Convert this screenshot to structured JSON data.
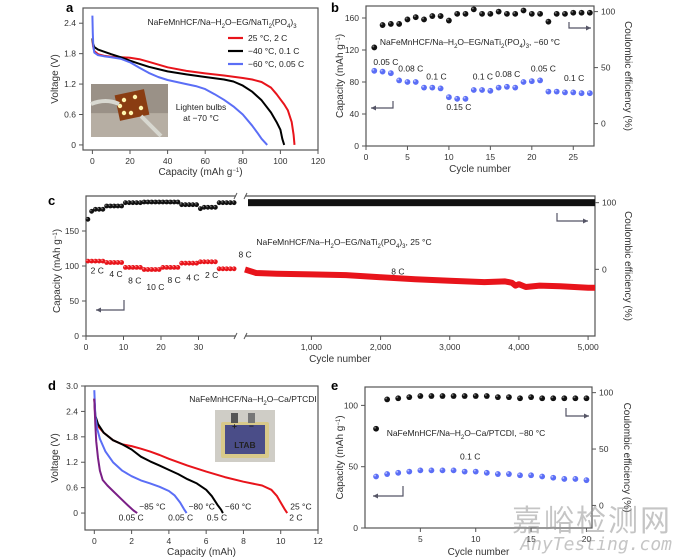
{
  "figure": {
    "panel_labels": [
      "a",
      "b",
      "c",
      "d",
      "e"
    ],
    "watermark": {
      "cn": "嘉峪检测网",
      "en": "AnyTesting.com"
    }
  },
  "chart_data": [
    {
      "id": "a",
      "type": "line",
      "title": "NaFeMnHCF/Na-H2O-EG/NaTi2(PO4)3",
      "xlabel": "Capacity (mAh g⁻¹)",
      "ylabel": "Voltage (V)",
      "xlim": [
        -5,
        120
      ],
      "ylim": [
        -0.1,
        2.7
      ],
      "xticks": [
        0,
        20,
        40,
        60,
        80,
        100,
        120
      ],
      "yticks": [
        0,
        0.6,
        1.2,
        1.8,
        2.4
      ],
      "ytick_labels": [
        "0",
        "0.6",
        "1.2",
        "1.8",
        "2.4"
      ],
      "legend_position": "top-right",
      "inset": {
        "caption_line1": "Lighten bulbs",
        "caption_line2": "at −70 °C"
      },
      "series": [
        {
          "name": "25 °C, 2 C",
          "color": "#e8141b",
          "x": [
            0,
            0.3,
            1,
            3,
            6,
            10,
            15,
            20,
            25,
            30,
            40,
            50,
            60,
            70,
            80,
            85,
            90,
            95,
            98,
            100,
            102,
            104,
            106,
            107,
            107.5
          ],
          "y": [
            2.1,
            1.95,
            1.85,
            1.79,
            1.76,
            1.74,
            1.73,
            1.72,
            1.69,
            1.64,
            1.53,
            1.46,
            1.41,
            1.37,
            1.32,
            1.29,
            1.24,
            1.13,
            1.0,
            0.9,
            0.8,
            0.68,
            0.45,
            0.2,
            0.0
          ]
        },
        {
          "name": "−40 °C, 0.1 C",
          "color": "#000000",
          "x": [
            0,
            0.3,
            1,
            3,
            6,
            10,
            15,
            20,
            25,
            30,
            40,
            50,
            60,
            70,
            75,
            80,
            85,
            90,
            95,
            98,
            100,
            101,
            102
          ],
          "y": [
            2.1,
            2.0,
            1.93,
            1.88,
            1.84,
            1.79,
            1.73,
            1.66,
            1.6,
            1.54,
            1.45,
            1.39,
            1.34,
            1.29,
            1.25,
            1.17,
            1.05,
            0.88,
            0.64,
            0.45,
            0.3,
            0.12,
            0.0
          ]
        },
        {
          "name": "−60 °C, 0.05 C",
          "color": "#5b6ef6",
          "x": [
            0,
            0.2,
            0.5,
            1,
            3,
            6,
            10,
            15,
            20,
            25,
            30,
            35,
            40,
            50,
            55,
            60,
            65,
            70,
            75,
            80,
            85,
            88,
            90,
            92,
            93
          ],
          "y": [
            2.55,
            2.2,
            1.95,
            1.82,
            1.77,
            1.75,
            1.73,
            1.7,
            1.63,
            1.52,
            1.42,
            1.34,
            1.28,
            1.2,
            1.16,
            1.1,
            1.0,
            0.89,
            0.76,
            0.6,
            0.38,
            0.23,
            0.12,
            0.04,
            0.0
          ]
        }
      ]
    },
    {
      "id": "b",
      "type": "scatter",
      "title": "NaFeMnHCF/Na-H2O-EG/NaTi2(PO4)3, −60 °C",
      "xlabel": "Cycle number",
      "ylabel": "Capacity (mAh g⁻¹)",
      "y2label": "Coulombic efficiency (%)",
      "xlim": [
        0,
        27.5
      ],
      "ylim": [
        0,
        175
      ],
      "y2lim": [
        -20,
        105
      ],
      "xticks": [
        0,
        5,
        10,
        15,
        20,
        25
      ],
      "yticks": [
        0,
        40,
        80,
        120,
        160
      ],
      "y2ticks": [
        0,
        50,
        100
      ],
      "series": [
        {
          "name": "Capacity",
          "axis": "left",
          "color": "#5b6ef6",
          "x": [
            1,
            2,
            3,
            4,
            5,
            6,
            7,
            8,
            9,
            10,
            11,
            12,
            13,
            14,
            15,
            16,
            17,
            18,
            19,
            20,
            21,
            22,
            23,
            24,
            25,
            26,
            27
          ],
          "y": [
            94,
            93,
            91,
            82,
            80,
            80,
            73,
            73,
            72,
            61,
            59,
            59,
            70,
            70,
            69,
            73,
            74,
            73,
            80,
            81,
            82,
            68,
            68,
            67,
            67,
            66,
            66
          ]
        },
        {
          "name": "Coulombic efficiency",
          "axis": "right",
          "color": "#111111",
          "x": [
            1,
            2,
            3,
            4,
            5,
            6,
            7,
            8,
            9,
            10,
            11,
            12,
            13,
            14,
            15,
            16,
            17,
            18,
            19,
            20,
            21,
            22,
            23,
            24,
            25,
            26,
            27
          ],
          "y": [
            68,
            88,
            89,
            89,
            93,
            95,
            93,
            96,
            96,
            92,
            98,
            98,
            102,
            98,
            98,
            100,
            98,
            98,
            101,
            98,
            98,
            91,
            98,
            98,
            99,
            99,
            99
          ]
        }
      ],
      "annotations": [
        {
          "text": "0.05 C",
          "x": 2.4,
          "y": 101
        },
        {
          "text": "0.08 C",
          "x": 5.4,
          "y": 93
        },
        {
          "text": "0.1 C",
          "x": 8.5,
          "y": 83
        },
        {
          "text": "0.15 C",
          "x": 11.2,
          "y": 45
        },
        {
          "text": "0.1 C",
          "x": 14.1,
          "y": 83
        },
        {
          "text": "0.08 C",
          "x": 17.1,
          "y": 86
        },
        {
          "text": "0.05 C",
          "x": 21.4,
          "y": 93
        },
        {
          "text": "0.1 C",
          "x": 25.1,
          "y": 81
        }
      ]
    },
    {
      "id": "c",
      "type": "scatter",
      "title": "NaFeMnHCF/Na-H2O-EG/NaTi2(PO4)3, 25 °C",
      "xlabel": "Cycle number",
      "ylabel": "Capacity (mAh g⁻¹)",
      "y2label": "Coulombic efficiency (%)",
      "broken_x_axis": true,
      "xlim_left": [
        0,
        40
      ],
      "xlim_right": [
        40,
        5100
      ],
      "ylim": [
        0,
        200
      ],
      "y2lim": [
        -100,
        110
      ],
      "xticks_left": [
        0,
        10,
        20,
        30
      ],
      "xticks_right": [
        1000,
        2000,
        3000,
        4000,
        5000
      ],
      "xtick_labels_right": [
        "1,000",
        "2,000",
        "3,000",
        "4,000",
        "5,000"
      ],
      "yticks": [
        0,
        50,
        100,
        150
      ],
      "y2ticks": [
        0,
        100
      ],
      "rate_segments": [
        {
          "label": "2 C",
          "cycles": [
            1,
            5
          ],
          "capacity": 107,
          "ce": [
            75,
            87,
            90
          ]
        },
        {
          "label": "4 C",
          "cycles": [
            6,
            10
          ],
          "capacity": 105,
          "ce": [
            95
          ]
        },
        {
          "label": "8 C",
          "cycles": [
            11,
            15
          ],
          "capacity": 98,
          "ce": [
            100
          ]
        },
        {
          "label": "10 C",
          "cycles": [
            16,
            20
          ],
          "capacity": 95,
          "ce": [
            101
          ]
        },
        {
          "label": "8 C",
          "cycles": [
            21,
            25
          ],
          "capacity": 98,
          "ce": [
            101
          ]
        },
        {
          "label": "4 C",
          "cycles": [
            26,
            30
          ],
          "capacity": 104,
          "ce": [
            97
          ]
        },
        {
          "label": "2 C",
          "cycles": [
            31,
            35
          ],
          "capacity": 106,
          "ce": [
            91,
            93
          ]
        },
        {
          "label": "8 C",
          "cycles": [
            36,
            40
          ],
          "capacity": 96,
          "ce": [
            100
          ]
        }
      ],
      "long_cycle": {
        "label": "8 C",
        "capacity_x": [
          40,
          200,
          500,
          1000,
          1500,
          2000,
          2500,
          3000,
          3500,
          3800,
          3900,
          3950,
          4000,
          4100,
          4300,
          4600,
          5000,
          5100
        ],
        "capacity_y": [
          95,
          90,
          89,
          88,
          87,
          84,
          81,
          79,
          77,
          78,
          76,
          72,
          74,
          70,
          72,
          71,
          69,
          69
        ],
        "ce": 100
      },
      "annotations": [
        {
          "text": "2 C",
          "x": 3,
          "y": 89
        },
        {
          "text": "4 C",
          "x": 8,
          "y": 84
        },
        {
          "text": "8 C",
          "x": 13,
          "y": 75
        },
        {
          "text": "10 C",
          "x": 18.5,
          "y": 66
        },
        {
          "text": "8 C",
          "x": 23.5,
          "y": 76
        },
        {
          "text": "4 C",
          "x": 28.5,
          "y": 79
        },
        {
          "text": "2 C",
          "x": 33.5,
          "y": 83
        },
        {
          "text": "8 C",
          "x": 41,
          "y": 112
        },
        {
          "text": "8 C",
          "x": 2250,
          "y": 88
        }
      ]
    },
    {
      "id": "d",
      "type": "line",
      "title": "NaFeMnHCF/Na-H2O-Ca/PTCDI",
      "xlabel": "Capacity (mAh)",
      "ylabel": "Voltage (V)",
      "xlim": [
        -0.5,
        12
      ],
      "ylim": [
        -0.4,
        3.0
      ],
      "xticks": [
        0,
        2,
        4,
        6,
        8,
        10,
        12
      ],
      "yticks": [
        0,
        0.6,
        1.2,
        1.8,
        2.4,
        3.0
      ],
      "ytick_labels": [
        "0",
        "0.6",
        "1.2",
        "1.8",
        "2.4",
        "3.0"
      ],
      "inset": {
        "label": "LTAB",
        "plus": "+",
        "minus": "−"
      },
      "series": [
        {
          "name": "25 °C",
          "rate": "2 C",
          "color": "#e8141b",
          "x": [
            0,
            0.05,
            0.2,
            0.5,
            1,
            1.5,
            2,
            2.5,
            3,
            3.5,
            4,
            5,
            6,
            7,
            8,
            9,
            9.5,
            9.8,
            10,
            10.2,
            10.35
          ],
          "y": [
            2.7,
            2.25,
            2.05,
            1.9,
            1.72,
            1.62,
            1.58,
            1.52,
            1.45,
            1.37,
            1.28,
            1.12,
            0.98,
            0.85,
            0.74,
            0.65,
            0.55,
            0.4,
            0.25,
            0.1,
            0.0
          ]
        },
        {
          "name": "−60 °C",
          "rate": "0.5 C",
          "color": "#000000",
          "x": [
            0,
            0.05,
            0.2,
            0.5,
            1,
            1.5,
            2,
            2.5,
            3,
            3.5,
            4,
            4.5,
            5,
            5.5,
            6,
            6.3,
            6.6,
            6.8,
            6.9
          ],
          "y": [
            2.7,
            2.3,
            2.1,
            1.9,
            1.72,
            1.62,
            1.5,
            1.33,
            1.22,
            1.12,
            1.02,
            0.92,
            0.8,
            0.7,
            0.55,
            0.4,
            0.2,
            0.08,
            0.0
          ]
        },
        {
          "name": "−80 °C",
          "rate": "0.05 C",
          "color": "#5b6ef6",
          "x": [
            0,
            0.05,
            0.15,
            0.3,
            0.6,
            1,
            1.5,
            2,
            2.5,
            3,
            3.5,
            4,
            4.3,
            4.6,
            4.8,
            4.95
          ],
          "y": [
            2.9,
            2.3,
            2.0,
            1.75,
            1.45,
            1.2,
            1.0,
            0.87,
            0.77,
            0.7,
            0.62,
            0.52,
            0.42,
            0.25,
            0.1,
            0.0
          ]
        },
        {
          "name": "−85 °C",
          "rate": "0.05 C",
          "color": "#7a1f86",
          "x": [
            0,
            0.05,
            0.1,
            0.2,
            0.3,
            0.45,
            0.7,
            1,
            1.4,
            1.8,
            2.1,
            2.3
          ],
          "y": [
            2.7,
            2.1,
            1.7,
            1.3,
            1.0,
            0.78,
            0.65,
            0.52,
            0.35,
            0.18,
            0.06,
            0.0
          ]
        }
      ],
      "end_labels": [
        {
          "temp": "−85 °C",
          "rate": "0.05 C",
          "color": "#7a1f86"
        },
        {
          "temp": "−80 °C",
          "rate": "0.05 C",
          "color": "#5b6ef6"
        },
        {
          "temp": "−60 °C",
          "rate": "0.5 C",
          "color": "#000000"
        },
        {
          "temp": "25 °C",
          "rate": "2 C",
          "color": "#e8141b"
        }
      ]
    },
    {
      "id": "e",
      "type": "scatter",
      "title": "NaFeMnHCF/Na-H2O-Ca/PTCDI, −80 °C",
      "xlabel": "Cycle number",
      "ylabel": "Capacity (mAh g⁻¹)",
      "y2label": "Coulombic efficiency (%)",
      "xlim": [
        0,
        20.5
      ],
      "ylim": [
        0,
        115
      ],
      "y2lim": [
        -20,
        105
      ],
      "xticks": [
        5,
        10,
        15,
        20
      ],
      "yticks": [
        0,
        50,
        100
      ],
      "y2ticks": [
        0,
        50,
        100
      ],
      "rate_label": "0.1 C",
      "series": [
        {
          "name": "Capacity",
          "axis": "left",
          "color": "#5b6ef6",
          "x": [
            1,
            2,
            3,
            4,
            5,
            6,
            7,
            8,
            9,
            10,
            11,
            12,
            13,
            14,
            15,
            16,
            17,
            18,
            19,
            20
          ],
          "y": [
            42,
            44,
            45,
            46,
            47,
            47,
            47,
            47,
            46,
            46,
            45,
            44,
            44,
            43,
            43,
            42,
            41,
            40,
            40,
            39
          ]
        },
        {
          "name": "Coulombic efficiency",
          "axis": "right",
          "color": "#111111",
          "x": [
            1,
            2,
            3,
            4,
            5,
            6,
            7,
            8,
            9,
            10,
            11,
            12,
            13,
            14,
            15,
            16,
            17,
            18,
            19,
            20
          ],
          "y": [
            68,
            94,
            95,
            96,
            97,
            97,
            97,
            97,
            97,
            97,
            97,
            96,
            96,
            95,
            96,
            95,
            95,
            95,
            95,
            95
          ]
        }
      ]
    }
  ]
}
